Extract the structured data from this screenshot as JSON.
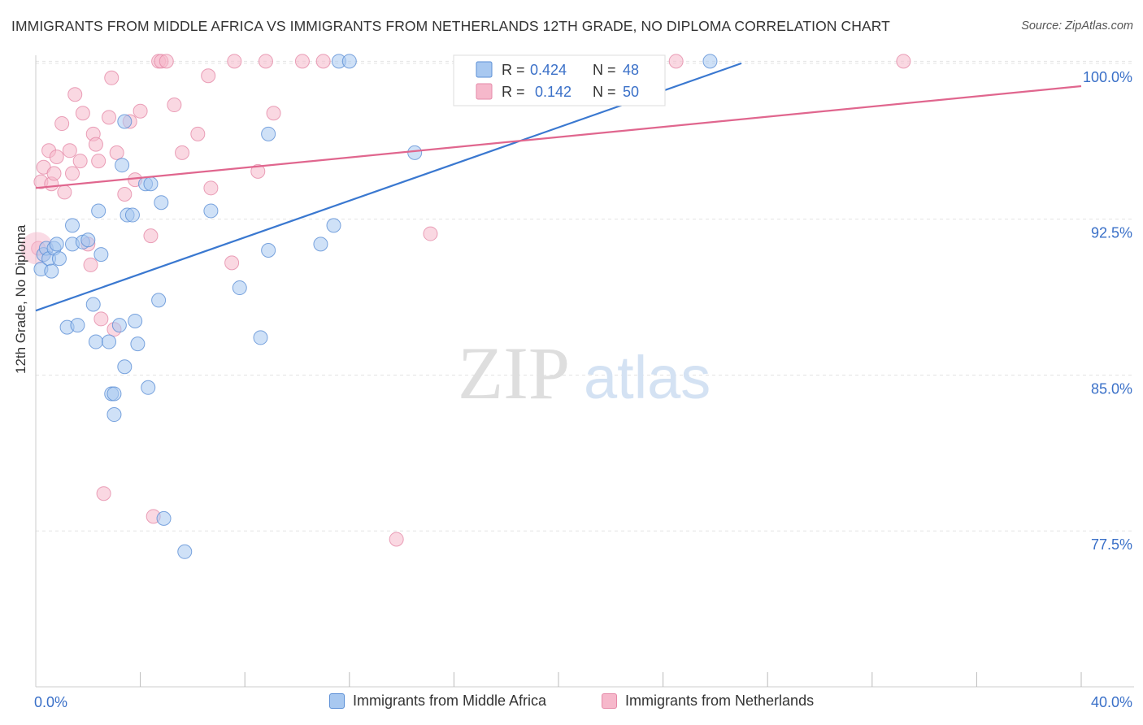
{
  "header": {
    "title": "IMMIGRANTS FROM MIDDLE AFRICA VS IMMIGRANTS FROM NETHERLANDS 12TH GRADE, NO DIPLOMA CORRELATION CHART",
    "source": "Source: ZipAtlas.com"
  },
  "watermark": {
    "zip": "ZIP",
    "atlas": "atlas"
  },
  "colors": {
    "blue_fill": "#a8c8f0",
    "blue_stroke": "#5b8fd6",
    "blue_line": "#3a78d0",
    "pink_fill": "#f6b8cb",
    "pink_stroke": "#e58aa8",
    "pink_line": "#e0668e",
    "tick_label": "#3a70c8",
    "grid": "#e3e3e3"
  },
  "legend_top": {
    "rows": [
      {
        "series": "blue",
        "r_label": "R =",
        "r_value": "0.424",
        "n_label": "N =",
        "n_value": "48"
      },
      {
        "series": "pink",
        "r_label": "R =",
        "r_value": "0.142",
        "n_label": "N =",
        "n_value": "50"
      }
    ]
  },
  "chart_data": {
    "type": "scatter",
    "title": "IMMIGRANTS FROM MIDDLE AFRICA VS IMMIGRANTS FROM NETHERLANDS 12TH GRADE, NO DIPLOMA CORRELATION CHART",
    "xlabel": "",
    "ylabel": "12th Grade, No Diploma",
    "xlim": [
      0,
      40
    ],
    "ylim": [
      70,
      100.7
    ],
    "x_tick_labels": [
      {
        "value": 0,
        "label": "0.0%"
      },
      {
        "value": 40,
        "label": "40.0%"
      }
    ],
    "x_minor_ticks": [
      4,
      8,
      12,
      16,
      20,
      24,
      28,
      32,
      36,
      40
    ],
    "y_ticks": [
      {
        "value": 100,
        "label": "100.0%"
      },
      {
        "value": 92.5,
        "label": "92.5%"
      },
      {
        "value": 85,
        "label": "85.0%"
      },
      {
        "value": 77.5,
        "label": "77.5%"
      }
    ],
    "series": [
      {
        "name": "Immigrants from Middle Africa",
        "color": "blue",
        "R": 0.424,
        "N": 48,
        "trend": [
          [
            0,
            88.1
          ],
          [
            27.0,
            100.0
          ]
        ],
        "points": [
          [
            0.2,
            90.1
          ],
          [
            0.3,
            90.8
          ],
          [
            0.4,
            91.1
          ],
          [
            0.5,
            90.6
          ],
          [
            0.6,
            90.0
          ],
          [
            0.7,
            91.1
          ],
          [
            0.8,
            91.3
          ],
          [
            0.9,
            90.6
          ],
          [
            1.2,
            87.3
          ],
          [
            1.4,
            92.2
          ],
          [
            1.4,
            91.3
          ],
          [
            1.6,
            87.4
          ],
          [
            1.8,
            91.4
          ],
          [
            2.0,
            91.5
          ],
          [
            2.2,
            88.4
          ],
          [
            2.3,
            86.6
          ],
          [
            2.4,
            92.9
          ],
          [
            2.5,
            90.8
          ],
          [
            2.8,
            86.6
          ],
          [
            2.9,
            84.1
          ],
          [
            3.0,
            84.1
          ],
          [
            3.0,
            83.1
          ],
          [
            3.2,
            87.4
          ],
          [
            3.3,
            95.1
          ],
          [
            3.4,
            85.4
          ],
          [
            3.4,
            97.2
          ],
          [
            3.5,
            92.7
          ],
          [
            3.7,
            92.7
          ],
          [
            3.8,
            87.6
          ],
          [
            3.9,
            86.5
          ],
          [
            4.2,
            94.2
          ],
          [
            4.3,
            84.4
          ],
          [
            4.4,
            94.2
          ],
          [
            4.7,
            88.6
          ],
          [
            4.8,
            93.3
          ],
          [
            4.9,
            78.1
          ],
          [
            5.7,
            76.5
          ],
          [
            6.7,
            92.9
          ],
          [
            7.8,
            89.2
          ],
          [
            8.6,
            86.8
          ],
          [
            8.9,
            91.0
          ],
          [
            8.9,
            96.6
          ],
          [
            10.9,
            91.3
          ],
          [
            11.4,
            92.2
          ],
          [
            11.6,
            100.1
          ],
          [
            12.0,
            100.1
          ],
          [
            14.5,
            95.7
          ],
          [
            25.8,
            100.1
          ]
        ]
      },
      {
        "name": "Immigrants from Netherlands",
        "color": "pink",
        "R": 0.142,
        "N": 50,
        "trend": [
          [
            0,
            94.0
          ],
          [
            40.0,
            98.9
          ]
        ],
        "points": [
          [
            0.1,
            91.1
          ],
          [
            0.2,
            94.3
          ],
          [
            0.3,
            95.0
          ],
          [
            0.5,
            95.8
          ],
          [
            0.6,
            94.2
          ],
          [
            0.7,
            94.7
          ],
          [
            0.8,
            95.5
          ],
          [
            1.0,
            97.1
          ],
          [
            1.1,
            93.8
          ],
          [
            1.3,
            95.8
          ],
          [
            1.4,
            94.7
          ],
          [
            1.5,
            98.5
          ],
          [
            1.7,
            95.3
          ],
          [
            1.8,
            97.6
          ],
          [
            2.0,
            91.3
          ],
          [
            2.1,
            90.3
          ],
          [
            2.2,
            96.6
          ],
          [
            2.3,
            96.1
          ],
          [
            2.4,
            95.3
          ],
          [
            2.5,
            87.7
          ],
          [
            2.6,
            79.3
          ],
          [
            2.8,
            97.4
          ],
          [
            2.9,
            99.3
          ],
          [
            3.0,
            87.2
          ],
          [
            3.1,
            95.7
          ],
          [
            3.4,
            93.7
          ],
          [
            3.6,
            97.2
          ],
          [
            3.8,
            94.4
          ],
          [
            4.0,
            97.7
          ],
          [
            4.4,
            91.7
          ],
          [
            4.5,
            78.2
          ],
          [
            4.7,
            100.1
          ],
          [
            4.8,
            100.1
          ],
          [
            5.0,
            100.1
          ],
          [
            5.3,
            98.0
          ],
          [
            5.6,
            95.7
          ],
          [
            6.2,
            96.6
          ],
          [
            6.6,
            99.4
          ],
          [
            6.7,
            94.0
          ],
          [
            7.5,
            90.4
          ],
          [
            7.6,
            100.1
          ],
          [
            8.5,
            94.8
          ],
          [
            8.8,
            100.1
          ],
          [
            9.1,
            97.6
          ],
          [
            10.2,
            100.1
          ],
          [
            11.0,
            100.1
          ],
          [
            13.8,
            77.1
          ],
          [
            15.1,
            91.8
          ],
          [
            24.5,
            100.1
          ],
          [
            33.2,
            100.1
          ]
        ]
      }
    ]
  }
}
